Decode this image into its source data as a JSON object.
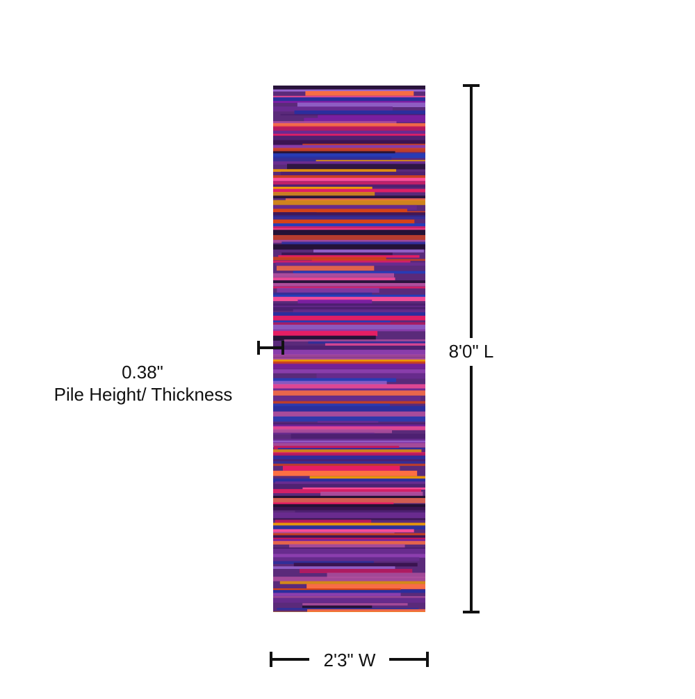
{
  "dimensions": {
    "length": "8'0\" L",
    "width": "2'3\" W",
    "thickness": {
      "value": "0.38\"",
      "label": "Pile Height/ Thickness"
    }
  }
}
